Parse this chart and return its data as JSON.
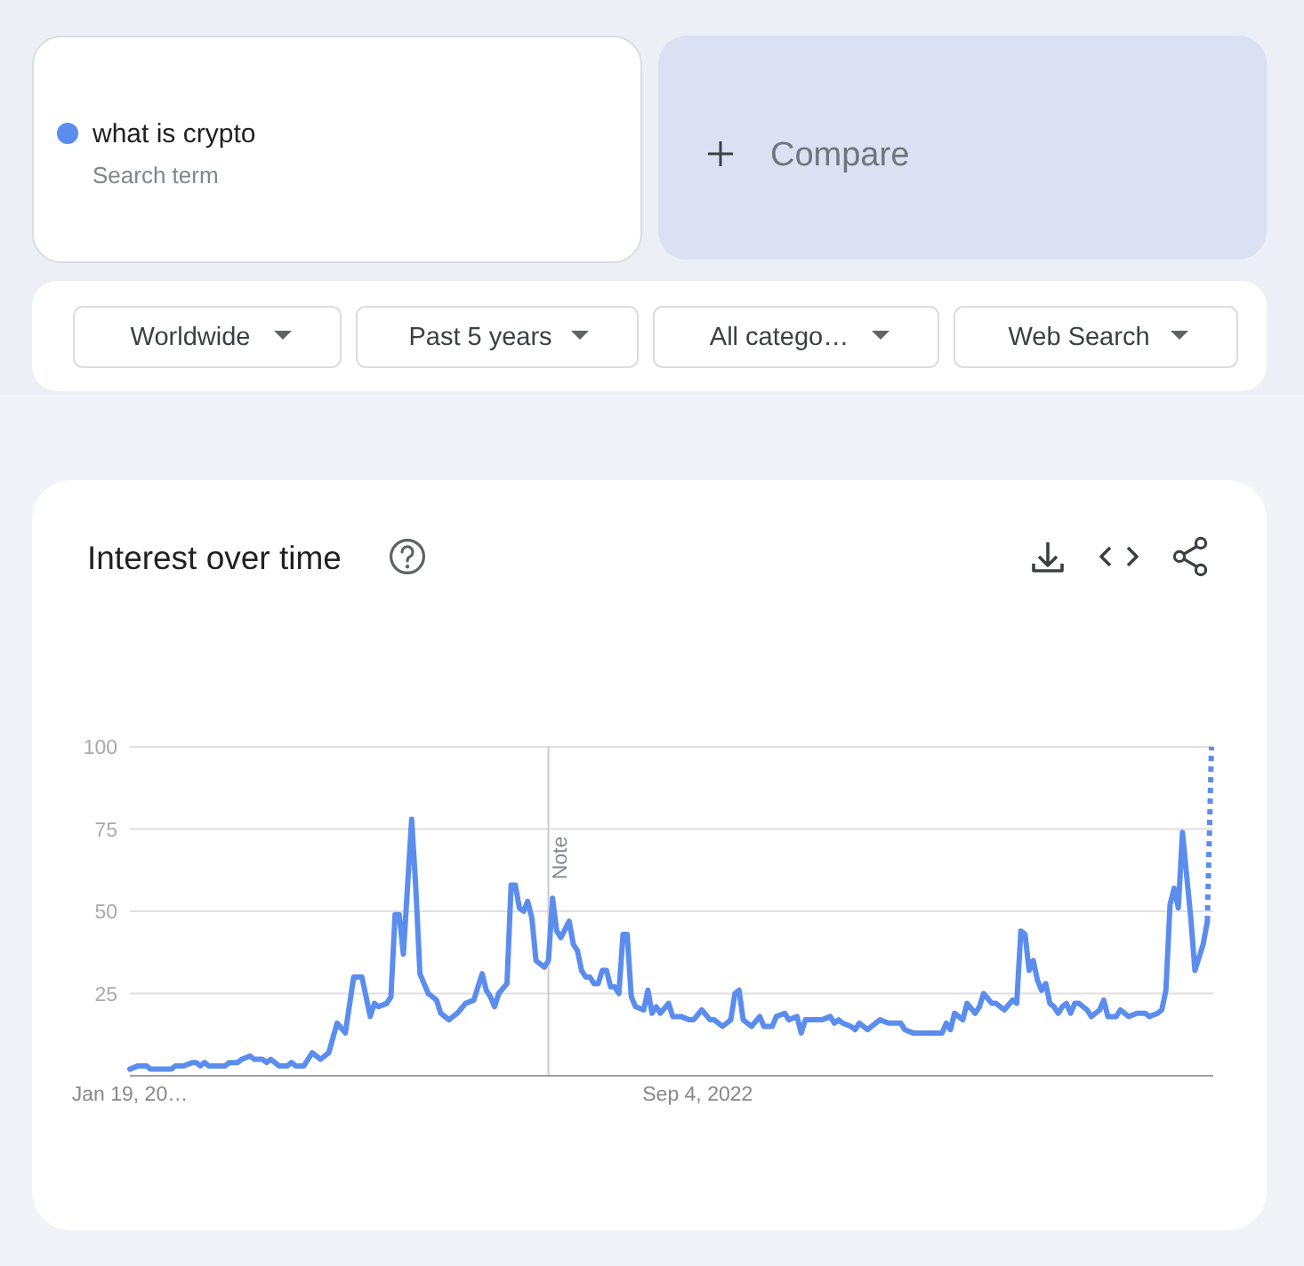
{
  "chart_data": {
    "type": "line",
    "title": "Interest over time",
    "annotations": [
      "Search term",
      "Compare",
      "Worldwide",
      "Past 5 years",
      "All catego…",
      "Web Search"
    ],
    "series": [
      {
        "name": "what is crypto",
        "color": "#5b8def",
        "x": [
          "2020-01-19",
          "2020-02-02",
          "2020-02-16",
          "2020-02-23",
          "2020-03-29",
          "2020-04-05",
          "2020-04-19",
          "2020-05-03",
          "2020-05-10",
          "2020-05-17",
          "2020-05-24",
          "2020-05-31",
          "2020-06-28",
          "2020-07-05",
          "2020-07-19",
          "2020-07-26",
          "2020-08-09",
          "2020-08-16",
          "2020-08-30",
          "2020-09-06",
          "2020-09-13",
          "2020-09-27",
          "2020-10-11",
          "2020-10-18",
          "2020-10-25",
          "2020-11-08",
          "2020-11-15",
          "2020-11-22",
          "2020-12-06",
          "2020-12-20",
          "2021-01-03",
          "2021-01-17",
          "2021-01-31",
          "2021-02-14",
          "2021-02-21",
          "2021-02-28",
          "2021-03-07",
          "2021-03-14",
          "2021-03-28",
          "2021-04-04",
          "2021-04-11",
          "2021-04-18",
          "2021-04-25",
          "2021-05-09",
          "2021-05-16",
          "2021-05-23",
          "2021-06-06",
          "2021-06-20",
          "2021-06-27",
          "2021-07-04",
          "2021-07-11",
          "2021-07-25",
          "2021-08-08",
          "2021-08-22",
          "2021-09-05",
          "2021-09-12",
          "2021-09-19",
          "2021-09-26",
          "2021-10-03",
          "2021-10-17",
          "2021-10-24",
          "2021-10-31",
          "2021-11-07",
          "2021-11-14",
          "2021-11-21",
          "2021-11-28",
          "2021-12-05",
          "2021-12-19",
          "2021-12-26",
          "2022-01-02",
          "2022-01-09",
          "2022-01-16",
          "2022-01-30",
          "2022-02-06",
          "2022-02-13",
          "2022-02-20",
          "2022-02-27",
          "2022-03-06",
          "2022-03-13",
          "2022-03-20",
          "2022-03-27",
          "2022-04-03",
          "2022-04-10",
          "2022-04-17",
          "2022-04-24",
          "2022-05-01",
          "2022-05-08",
          "2022-05-15",
          "2022-05-22",
          "2022-06-05",
          "2022-06-12",
          "2022-06-19",
          "2022-06-26",
          "2022-07-03",
          "2022-07-17",
          "2022-07-24",
          "2022-08-07",
          "2022-08-21",
          "2022-08-28",
          "2022-09-11",
          "2022-09-25",
          "2022-10-02",
          "2022-10-16",
          "2022-10-30",
          "2022-11-06",
          "2022-11-13",
          "2022-11-20",
          "2022-12-04",
          "2022-12-18",
          "2022-12-25",
          "2023-01-08",
          "2023-01-15",
          "2023-01-29",
          "2023-02-05",
          "2023-02-19",
          "2023-02-26",
          "2023-03-05",
          "2023-03-19",
          "2023-04-02",
          "2023-04-16",
          "2023-04-23",
          "2023-04-30",
          "2023-05-07",
          "2023-05-21",
          "2023-05-28",
          "2023-06-04",
          "2023-06-18",
          "2023-07-09",
          "2023-07-23",
          "2023-08-13",
          "2023-08-20",
          "2023-09-03",
          "2023-10-22",
          "2023-10-29",
          "2023-11-05",
          "2023-11-12",
          "2023-11-26",
          "2023-12-03",
          "2023-12-17",
          "2023-12-24",
          "2023-12-31",
          "2024-01-14",
          "2024-01-21",
          "2024-02-04",
          "2024-02-18",
          "2024-02-25",
          "2024-03-03",
          "2024-03-10",
          "2024-03-17",
          "2024-03-24",
          "2024-03-31",
          "2024-04-07",
          "2024-04-14",
          "2024-04-21",
          "2024-04-28",
          "2024-05-05",
          "2024-05-12",
          "2024-05-19",
          "2024-05-26",
          "2024-06-02",
          "2024-06-09",
          "2024-06-23",
          "2024-06-30",
          "2024-07-14",
          "2024-07-21",
          "2024-07-28",
          "2024-08-11",
          "2024-08-18",
          "2024-09-01",
          "2024-09-15",
          "2024-09-29",
          "2024-10-06",
          "2024-10-20",
          "2024-10-27",
          "2024-11-03",
          "2024-11-10",
          "2024-11-17",
          "2024-11-24",
          "2024-12-01",
          "2024-12-15",
          "2024-12-22",
          "2024-12-29",
          "2025-01-05",
          "2025-01-12"
        ],
        "values": [
          2,
          3,
          3,
          2,
          2,
          3,
          3,
          4,
          4,
          3,
          4,
          3,
          3,
          4,
          4,
          5,
          6,
          5,
          5,
          4,
          5,
          3,
          3,
          4,
          3,
          3,
          5,
          7,
          5,
          7,
          16,
          13,
          30,
          30,
          24,
          18,
          22,
          21,
          22,
          24,
          49,
          49,
          37,
          78,
          57,
          31,
          25,
          23,
          19,
          18,
          17,
          19,
          22,
          23,
          31,
          26,
          24,
          21,
          25,
          28,
          58,
          58,
          51,
          50,
          53,
          48,
          35,
          33,
          35,
          54,
          44,
          42,
          47,
          40,
          38,
          32,
          30,
          30,
          28,
          28,
          32,
          32,
          27,
          27,
          25,
          43,
          43,
          24,
          21,
          20,
          26,
          19,
          21,
          19,
          22,
          18,
          18,
          17,
          17,
          20,
          17,
          17,
          15,
          17,
          25,
          26,
          17,
          15,
          18,
          15,
          15,
          18,
          19,
          17,
          18,
          13,
          17,
          17,
          17,
          18,
          16,
          17,
          16,
          15,
          14,
          16,
          14,
          17,
          16,
          16,
          14,
          13,
          13,
          16,
          14,
          19,
          17,
          22,
          19,
          21,
          25,
          22,
          22,
          20,
          23,
          22,
          44,
          43,
          32,
          35,
          29,
          26,
          28,
          22,
          21,
          19,
          21,
          22,
          19,
          22,
          22,
          20,
          18,
          20,
          23,
          18,
          18,
          20,
          18,
          19,
          19,
          18,
          19,
          20,
          26,
          52,
          57,
          51,
          74,
          48,
          32,
          36,
          40,
          47
        ]
      },
      {
        "color": "#5b8def",
        "line_style": "dotted",
        "x": [
          "2025-01-12",
          "2025-01-19"
        ],
        "values": [
          47,
          100
        ]
      }
    ],
    "xlim": [
      "2020-01-19",
      "2025-01-19"
    ],
    "xticks": [
      {
        "value": "2020-01-19",
        "label": "Jan 19, 20…"
      },
      {
        "value": "2022-09-04",
        "label": "Sep 4, 2022"
      }
    ],
    "ylim": [
      0,
      100
    ],
    "yticks": [
      25,
      50,
      75,
      100
    ],
    "ref_lines": [
      {
        "axis": "x",
        "value": "2021-12-26",
        "label": "Note",
        "color": "#cccccc"
      }
    ],
    "grid": "y",
    "legend": "top left",
    "line_style": "solid"
  }
}
